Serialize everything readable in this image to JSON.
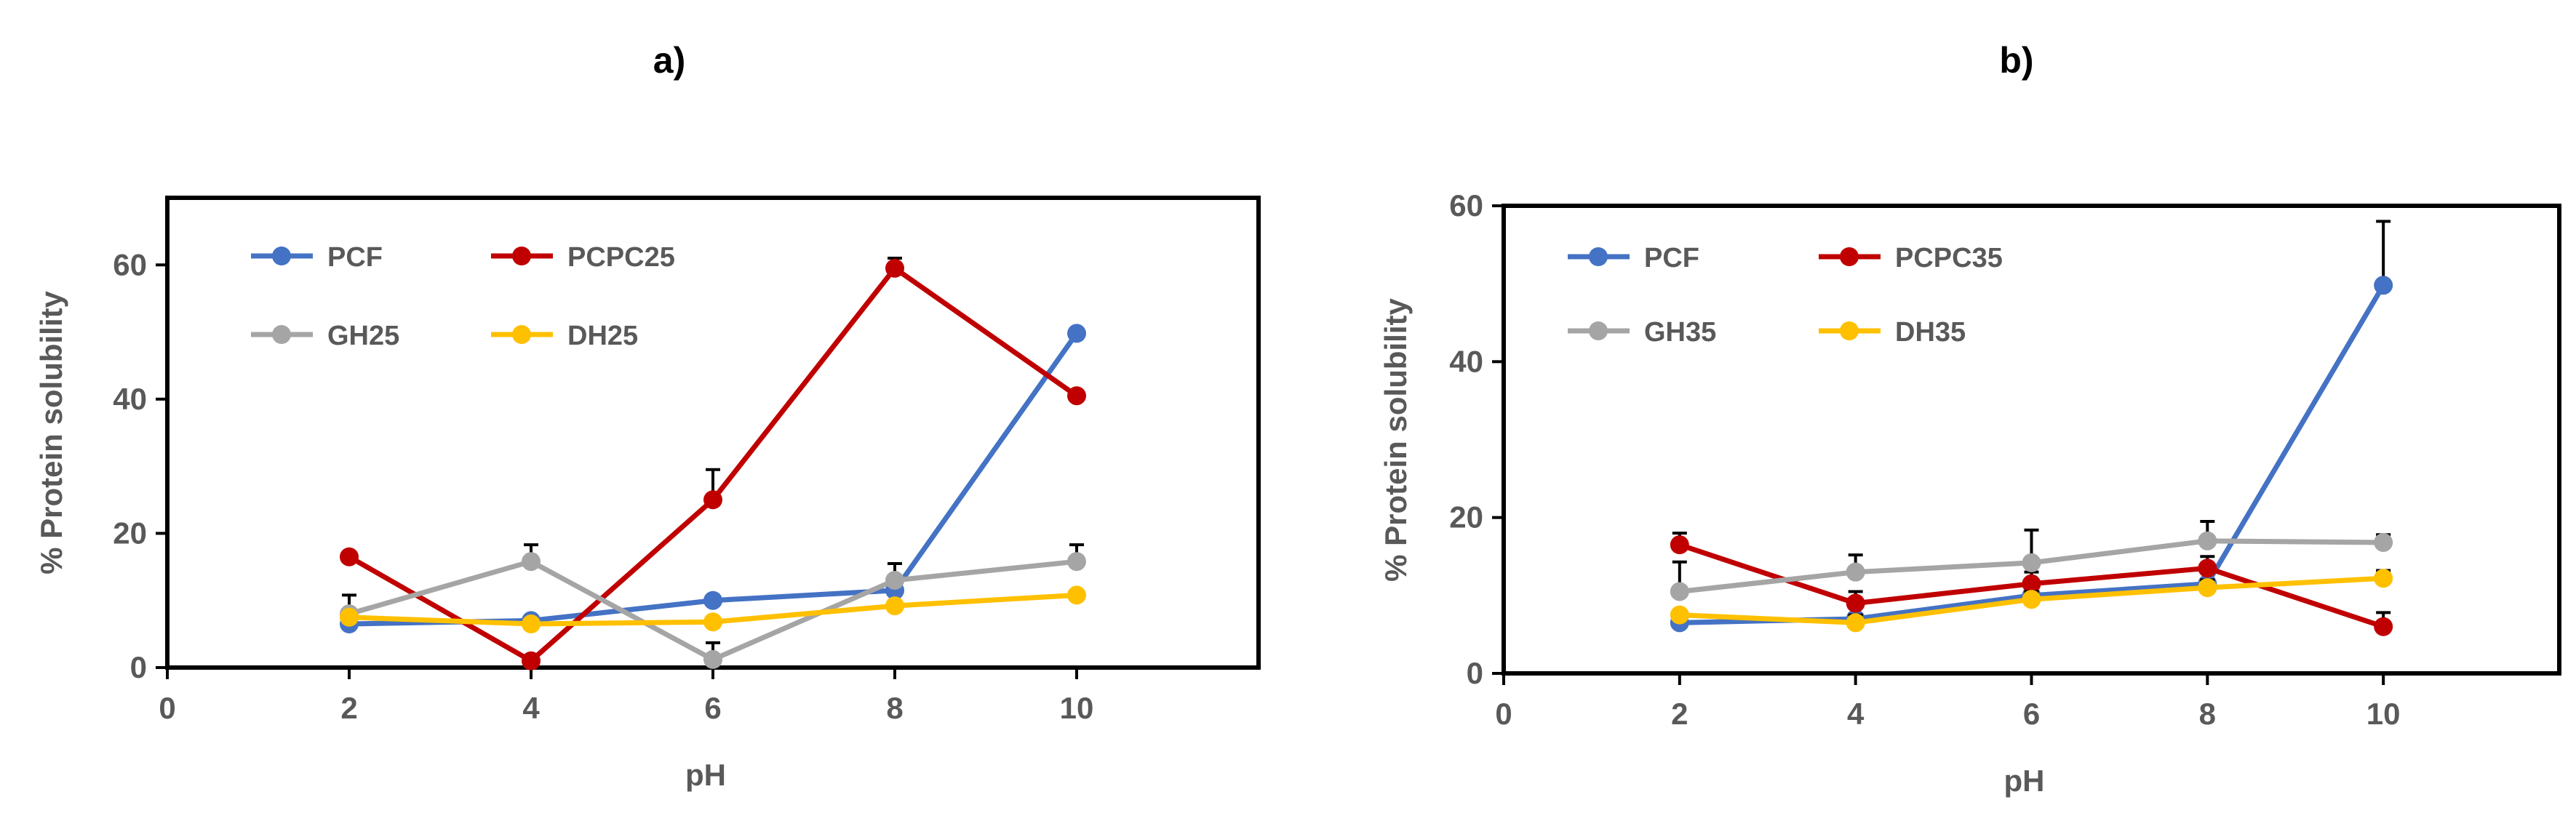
{
  "chart_data": [
    {
      "type": "line",
      "title": "a)",
      "xlabel": "pH",
      "ylabel": "% Protein solubility",
      "xlim": [
        0,
        12
      ],
      "ylim": [
        0,
        70
      ],
      "xticks": [
        0,
        2,
        4,
        6,
        8,
        10
      ],
      "yticks": [
        0,
        20,
        40,
        60
      ],
      "x": [
        2,
        4,
        6,
        8,
        10
      ],
      "series": [
        {
          "name": "PCF",
          "color": "#4472C4",
          "values": [
            6.5,
            7.0,
            10.0,
            11.5,
            49.8
          ],
          "errors": [
            0,
            0,
            0,
            0,
            0
          ]
        },
        {
          "name": "PCPC25",
          "color": "#C00000",
          "values": [
            16.5,
            1.0,
            25.0,
            59.5,
            40.5
          ],
          "errors": [
            0,
            0,
            4.5,
            1.5,
            0
          ]
        },
        {
          "name": "GH25",
          "color": "#A5A5A5",
          "values": [
            8.0,
            15.8,
            1.2,
            13.0,
            15.8
          ],
          "errors": [
            2.8,
            2.5,
            2.5,
            2.5,
            2.5
          ]
        },
        {
          "name": "DH25",
          "color": "#FFC000",
          "values": [
            7.5,
            6.5,
            6.8,
            9.2,
            10.8
          ],
          "errors": [
            0,
            0,
            0,
            0,
            0
          ]
        }
      ]
    },
    {
      "type": "line",
      "title": "b)",
      "xlabel": "pH",
      "ylabel": "% Protein solubility",
      "xlim": [
        0,
        12
      ],
      "ylim": [
        0,
        60
      ],
      "xticks": [
        0,
        2,
        4,
        6,
        8,
        10
      ],
      "yticks": [
        0,
        20,
        40,
        60
      ],
      "x": [
        2,
        4,
        6,
        8,
        10
      ],
      "series": [
        {
          "name": "PCF",
          "color": "#4472C4",
          "values": [
            6.5,
            7.0,
            10.0,
            11.5,
            49.8
          ],
          "errors": [
            0,
            0,
            0,
            0,
            8.2
          ]
        },
        {
          "name": "PCPC35",
          "color": "#C00000",
          "values": [
            16.5,
            9.0,
            11.5,
            13.5,
            6.0
          ],
          "errors": [
            1.5,
            1.5,
            1.5,
            1.5,
            1.8
          ]
        },
        {
          "name": "GH35",
          "color": "#A5A5A5",
          "values": [
            10.5,
            13.0,
            14.2,
            17.0,
            16.8
          ],
          "errors": [
            3.8,
            2.2,
            4.2,
            2.5,
            1.0
          ]
        },
        {
          "name": "DH35",
          "color": "#FFC000",
          "values": [
            7.5,
            6.5,
            9.5,
            11.0,
            12.2
          ],
          "errors": [
            0,
            1.0,
            1.0,
            1.0,
            1.0
          ]
        }
      ]
    }
  ]
}
